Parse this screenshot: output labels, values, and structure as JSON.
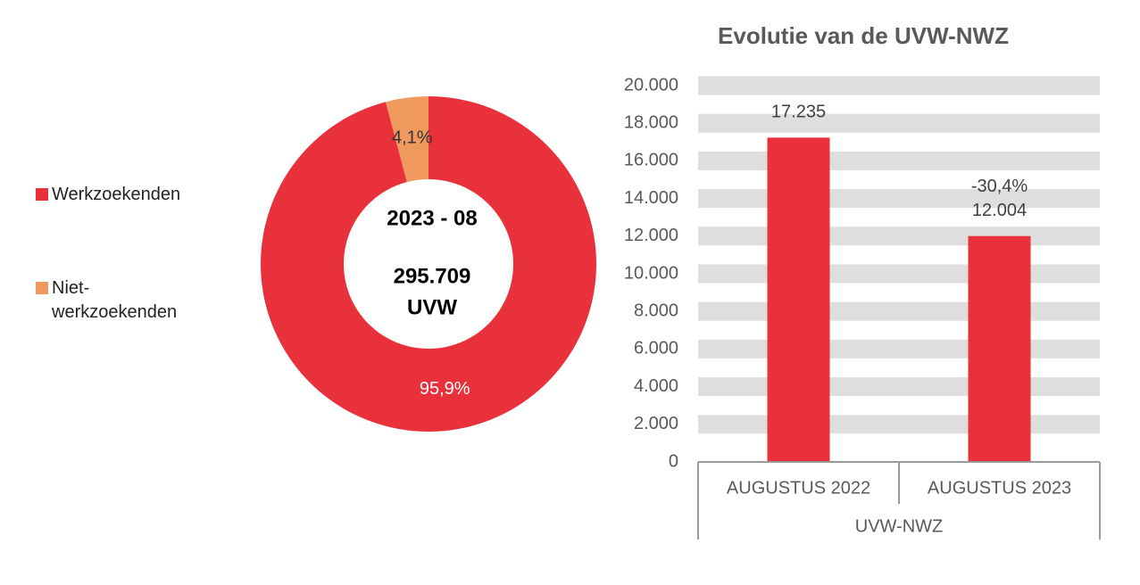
{
  "chart_data": [
    {
      "type": "donut",
      "categories": [
        "Werkzoekenden",
        "Niet-werkzoekenden"
      ],
      "values": [
        95.9,
        4.1
      ],
      "value_labels": [
        "95,9%",
        "4,1%"
      ],
      "colors": [
        "#e8313a",
        "#f0995e"
      ],
      "center_labels": [
        "2023 - 08",
        "295.709",
        "UVW"
      ]
    },
    {
      "type": "bar",
      "title": "Evolutie van de UVW-NWZ",
      "xlabel": "UVW-NWZ",
      "categories": [
        "AUGUSTUS 2022",
        "AUGUSTUS 2023"
      ],
      "values": [
        17235,
        12004
      ],
      "value_labels": [
        "17.235",
        "12.004"
      ],
      "color": "#e8313a",
      "annotations": [
        {
          "text": "-30,4%",
          "category": "AUGUSTUS 2023"
        }
      ],
      "ylim": [
        0,
        20000
      ],
      "yticks": [
        0,
        {
          "value": 2000,
          "label": "2.000"
        },
        {
          "value": 4000,
          "label": "4.000"
        },
        {
          "value": 6000,
          "label": "6.000"
        },
        {
          "value": 8000,
          "label": "8.000"
        },
        {
          "value": 10000,
          "label": "10.000"
        },
        {
          "value": 12000,
          "label": "12.000"
        },
        {
          "value": 14000,
          "label": "14.000"
        },
        {
          "value": 16000,
          "label": "16.000"
        },
        {
          "value": 18000,
          "label": "18.000"
        },
        {
          "value": 20000,
          "label": "20.000"
        }
      ],
      "grid": true
    }
  ]
}
